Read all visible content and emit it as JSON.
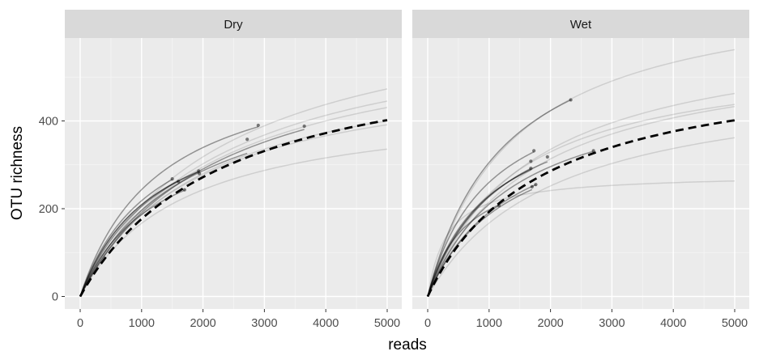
{
  "chart_data": {
    "type": "line",
    "xlabel": "reads",
    "ylabel": "OTU richness",
    "xlim": [
      0,
      5000
    ],
    "ylim": [
      0,
      560
    ],
    "x_ticks": [
      "0",
      "1000",
      "2000",
      "3000",
      "4000",
      "5000"
    ],
    "y_ticks": [
      "0",
      "200",
      "400"
    ],
    "grid": true,
    "legend": "none",
    "colors": {
      "panel_bg": "#ebebeb",
      "strip_bg": "#d9d9d9",
      "grid": "#ffffff",
      "curve": "#000000",
      "mean_line": "#000000"
    },
    "facets": [
      {
        "name": "Dry",
        "mean_curve": {
          "asymptote": 590,
          "half_saturation": 2340
        },
        "samples": [
          {
            "asymptote": 560,
            "half_saturation": 1300,
            "observed": [
              2900,
              390
            ]
          },
          {
            "asymptote": 610,
            "half_saturation": 2200,
            "observed": [
              3650,
              388
            ]
          },
          {
            "asymptote": 530,
            "half_saturation": 1700,
            "observed": [
              2720,
              358
            ]
          },
          {
            "asymptote": 480,
            "half_saturation": 1200,
            "observed": [
              1500,
              268
            ]
          },
          {
            "asymptote": 500,
            "half_saturation": 1440,
            "observed": [
              1600,
              262
            ]
          },
          {
            "asymptote": 460,
            "half_saturation": 1200,
            "observed": [
              1930,
              286
            ]
          },
          {
            "asymptote": 470,
            "half_saturation": 1250,
            "observed": [
              1940,
              280
            ]
          },
          {
            "asymptote": 420,
            "half_saturation": 1250,
            "observed": [
              1700,
              243
            ]
          },
          {
            "asymptote": 700,
            "half_saturation": 2400,
            "observed": null
          },
          {
            "asymptote": 620,
            "half_saturation": 2200,
            "observed": null
          },
          {
            "asymptote": 650,
            "half_saturation": 2300,
            "observed": null
          },
          {
            "asymptote": 560,
            "half_saturation": 2000,
            "observed": null
          },
          {
            "asymptote": 540,
            "half_saturation": 1900,
            "observed": null
          },
          {
            "asymptote": 450,
            "half_saturation": 1700,
            "observed": null
          }
        ]
      },
      {
        "name": "Wet",
        "mean_curve": {
          "asymptote": 550,
          "half_saturation": 1850
        },
        "samples": [
          {
            "asymptote": 690,
            "half_saturation": 1260,
            "observed": [
              2330,
              448
            ]
          },
          {
            "asymptote": 520,
            "half_saturation": 1000,
            "observed": [
              1730,
              332
            ]
          },
          {
            "asymptote": 500,
            "half_saturation": 1200,
            "observed": [
              1680,
              308
            ]
          },
          {
            "asymptote": 460,
            "half_saturation": 1000,
            "observed": [
              1680,
              292
            ]
          },
          {
            "asymptote": 480,
            "half_saturation": 1100,
            "observed": [
              1950,
              318
            ]
          },
          {
            "asymptote": 450,
            "half_saturation": 1350,
            "observed": [
              1760,
              255
            ]
          },
          {
            "asymptote": 430,
            "half_saturation": 1300,
            "observed": [
              1700,
              250
            ]
          },
          {
            "asymptote": 320,
            "half_saturation": 620,
            "observed": [
              1160,
              207
            ]
          },
          {
            "asymptote": 500,
            "half_saturation": 1380,
            "observed": [
              2700,
              332
            ]
          },
          {
            "asymptote": 720,
            "half_saturation": 1400,
            "observed": null
          },
          {
            "asymptote": 620,
            "half_saturation": 1700,
            "observed": null
          },
          {
            "asymptote": 560,
            "half_saturation": 1400,
            "observed": null
          },
          {
            "asymptote": 580,
            "half_saturation": 1700,
            "observed": null
          },
          {
            "asymptote": 280,
            "half_saturation": 320,
            "observed": null
          },
          {
            "asymptote": 510,
            "half_saturation": 2050,
            "observed": null
          }
        ]
      }
    ]
  }
}
